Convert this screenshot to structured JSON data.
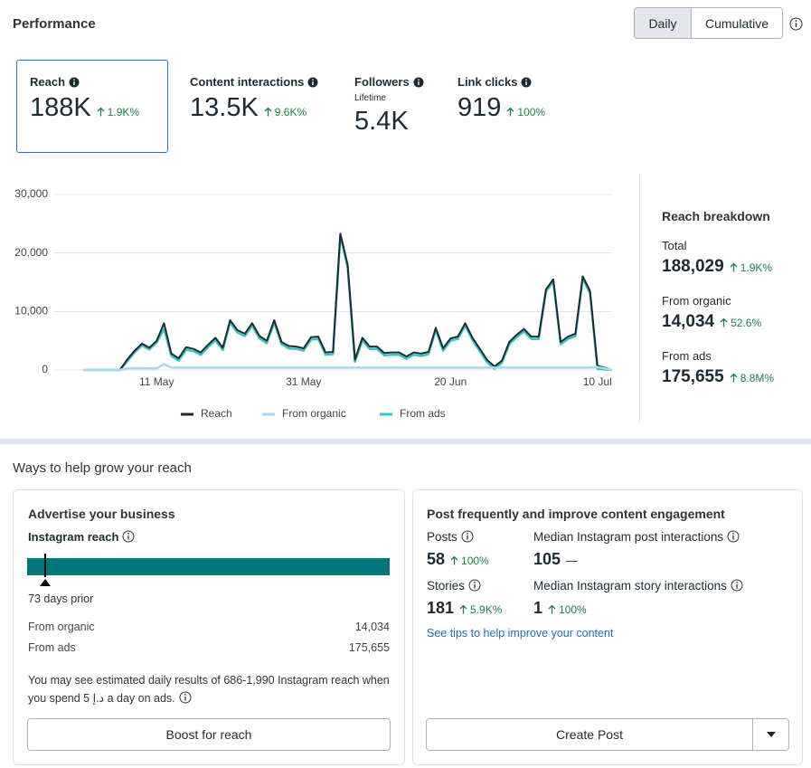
{
  "header": {
    "title": "Performance",
    "toggle": [
      "Daily",
      "Cumulative"
    ]
  },
  "metrics": [
    {
      "label": "Reach",
      "value": "188K",
      "change": "1.9K%"
    },
    {
      "label": "Content interactions",
      "value": "13.5K",
      "change": "9.6K%"
    },
    {
      "label": "Followers",
      "sublabel": "Lifetime",
      "value": "5.4K"
    },
    {
      "label": "Link clicks",
      "value": "919",
      "change": "100%"
    }
  ],
  "chart": {
    "type": "line",
    "categories": [
      null,
      null,
      null,
      null,
      null,
      null,
      null,
      null,
      null,
      null,
      "11 May",
      null,
      null,
      null,
      null,
      null,
      null,
      null,
      null,
      null,
      null,
      null,
      null,
      null,
      null,
      null,
      null,
      null,
      null,
      null,
      "31 May",
      null,
      null,
      null,
      null,
      null,
      null,
      null,
      null,
      null,
      null,
      null,
      null,
      null,
      null,
      null,
      null,
      null,
      null,
      null,
      "20 Jun",
      null,
      null,
      null,
      null,
      null,
      null,
      null,
      null,
      null,
      null,
      null,
      null,
      null,
      null,
      null,
      null,
      null,
      null,
      null,
      "10 Jul",
      null,
      null
    ],
    "ylim": [
      0,
      30000
    ],
    "yticks": [
      0,
      {
        "value": 10000,
        "label": "10,000"
      },
      {
        "value": 20000,
        "label": "20,000"
      },
      {
        "value": 30000,
        "label": "30,000"
      }
    ],
    "grid": true,
    "series": [
      {
        "name": "Reach",
        "color": "#1c2b33",
        "values": [
          0,
          0,
          0,
          0,
          0,
          0,
          1800,
          3300,
          4500,
          3800,
          5000,
          8000,
          2800,
          2000,
          3900,
          3600,
          3000,
          4300,
          5500,
          3800,
          8500,
          6800,
          6200,
          8000,
          5800,
          5000,
          8500,
          4800,
          4100,
          4000,
          3700,
          5600,
          5700,
          3000,
          3100,
          23300,
          18000,
          1800,
          5500,
          4000,
          4000,
          2900,
          3000,
          3000,
          2300,
          3000,
          2800,
          3100,
          7200,
          3700,
          5400,
          5700,
          8000,
          5500,
          3600,
          1700,
          600,
          1600,
          4800,
          6000,
          7000,
          5700,
          5700,
          13800,
          15500,
          4800,
          5700,
          6200,
          16000,
          13500,
          700,
          400,
          0
        ]
      },
      {
        "name": "From organic",
        "color": "#a6d8f0",
        "values": [
          0,
          0,
          0,
          0,
          0,
          0,
          300,
          300,
          300,
          300,
          300,
          1000,
          400,
          400,
          400,
          400,
          400,
          400,
          400,
          400,
          400,
          400,
          400,
          400,
          400,
          400,
          400,
          400,
          400,
          400,
          400,
          400,
          400,
          400,
          400,
          400,
          400,
          400,
          400,
          400,
          400,
          400,
          400,
          400,
          400,
          400,
          400,
          400,
          400,
          400,
          400,
          400,
          400,
          400,
          400,
          400,
          400,
          400,
          400,
          400,
          400,
          400,
          400,
          400,
          400,
          400,
          400,
          400,
          400,
          400,
          500,
          300,
          0
        ]
      },
      {
        "name": "From ads",
        "color": "#35c4c4",
        "values": [
          0,
          0,
          0,
          0,
          0,
          0,
          1500,
          3000,
          4200,
          3500,
          4700,
          7000,
          2400,
          1600,
          3500,
          3200,
          2600,
          3900,
          5100,
          3400,
          8100,
          6400,
          5800,
          7600,
          5400,
          4600,
          8100,
          4400,
          3700,
          3600,
          3300,
          5200,
          5300,
          2600,
          2700,
          22900,
          17600,
          1400,
          5100,
          3600,
          3600,
          2500,
          2600,
          2600,
          1900,
          2600,
          2400,
          2700,
          6800,
          3300,
          5000,
          5300,
          7600,
          5100,
          3200,
          1300,
          200,
          1200,
          4400,
          5600,
          6600,
          5300,
          5300,
          13400,
          15100,
          4400,
          5300,
          5800,
          15600,
          13100,
          200,
          100,
          0
        ]
      }
    ]
  },
  "breakdown": {
    "title": "Reach breakdown",
    "items": [
      {
        "label": "Total",
        "value": "188,029",
        "change": "1.9K%"
      },
      {
        "label": "From organic",
        "value": "14,034",
        "change": "52.6%"
      },
      {
        "label": "From ads",
        "value": "175,655",
        "change": "8.8M%"
      }
    ]
  },
  "grow": {
    "title": "Ways to help grow your reach"
  },
  "advertise": {
    "title": "Advertise your business",
    "subtitle": "Instagram reach",
    "marker": "73 days prior",
    "rows": [
      [
        "From organic",
        "14,034"
      ],
      [
        "From ads",
        "175,655"
      ]
    ],
    "note": "You may see estimated daily results of 686-1,990 Instagram reach when you spend 5 د.إ a day on ads.",
    "button": "Boost for reach"
  },
  "post": {
    "title": "Post frequently and improve content engagement",
    "stats": [
      {
        "label": "Posts",
        "value": "58",
        "change": "100%"
      },
      {
        "label": "Median Instagram post interactions",
        "value": "105",
        "change": "—"
      },
      {
        "label": "Stories",
        "value": "181",
        "change": "5.9K%"
      },
      {
        "label": "Median Instagram story interactions",
        "value": "1",
        "change": "100%"
      }
    ],
    "link": "See tips to help improve your content",
    "button": "Create Post"
  }
}
